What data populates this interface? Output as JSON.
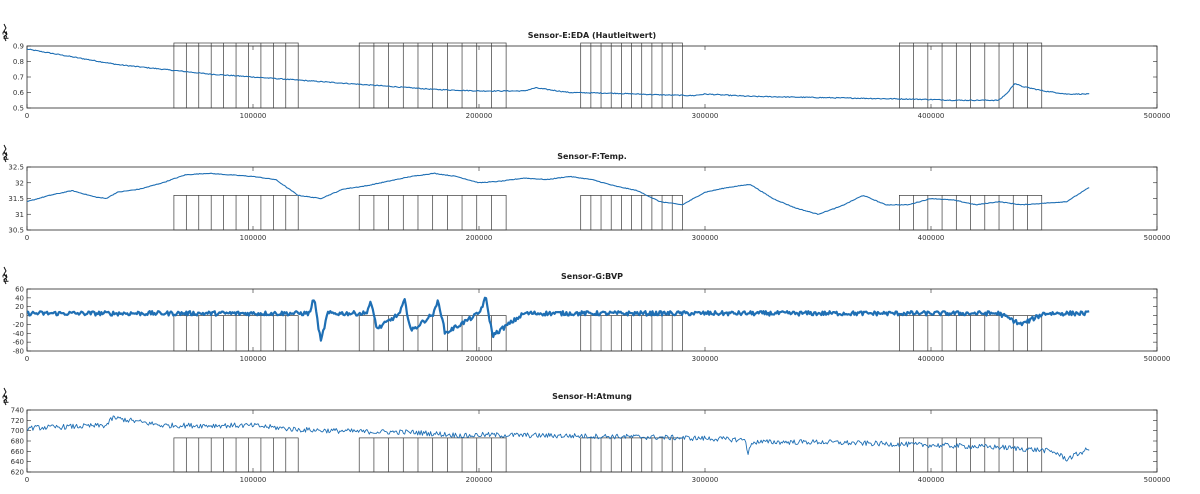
{
  "chart_data": [
    {
      "type": "line",
      "title": "Sensor-E:EDA (Hautleitwert)",
      "ylabel": "p2",
      "xlim": [
        0,
        500000
      ],
      "ylim": [
        0.5,
        0.9
      ],
      "xticks": [
        0,
        100000,
        200000,
        300000,
        400000,
        500000
      ],
      "xtick_labels": [
        "0",
        "100000",
        "200000",
        "300000",
        "400000",
        "500000"
      ],
      "yticks": [
        0.5,
        0.6,
        0.7,
        0.8,
        0.9
      ],
      "ytick_labels": [
        "0.5",
        "0.6",
        "0.7",
        "0.8",
        "0.9"
      ],
      "noise": 0.003,
      "series": [
        {
          "name": "EDA",
          "x": [
            0,
            20000,
            40000,
            60000,
            80000,
            100000,
            120000,
            140000,
            160000,
            180000,
            200000,
            220000,
            225000,
            240000,
            260000,
            280000,
            295000,
            300000,
            320000,
            340000,
            360000,
            380000,
            400000,
            410000,
            420000,
            430000,
            434000,
            437000,
            440000,
            450000,
            460000,
            470000
          ],
          "values": [
            0.88,
            0.83,
            0.78,
            0.75,
            0.72,
            0.7,
            0.68,
            0.66,
            0.64,
            0.62,
            0.61,
            0.61,
            0.63,
            0.6,
            0.595,
            0.585,
            0.58,
            0.59,
            0.575,
            0.57,
            0.565,
            0.56,
            0.555,
            0.55,
            0.55,
            0.55,
            0.6,
            0.66,
            0.64,
            0.61,
            0.59,
            0.59
          ]
        }
      ],
      "blocks": [
        {
          "x_start": 65000,
          "x_end": 120000,
          "y_top": 0.92
        },
        {
          "x_start": 147000,
          "x_end": 212000,
          "y_top": 0.92
        },
        {
          "x_start": 245000,
          "x_end": 290000,
          "y_top": 0.92
        },
        {
          "x_start": 386000,
          "x_end": 449000,
          "y_top": 0.92
        }
      ]
    },
    {
      "type": "line",
      "title": "Sensor-F:Temp.",
      "ylabel": "p2",
      "xlim": [
        0,
        500000
      ],
      "ylim": [
        30.5,
        32.5
      ],
      "xticks": [
        0,
        100000,
        200000,
        300000,
        400000,
        500000
      ],
      "xtick_labels": [
        "0",
        "100000",
        "200000",
        "300000",
        "400000",
        "500000"
      ],
      "yticks": [
        30.5,
        31,
        31.5,
        32,
        32.5
      ],
      "ytick_labels": [
        "30.5",
        "31",
        "31.5",
        "32",
        "32.5"
      ],
      "noise": 0.01,
      "series": [
        {
          "name": "Temp",
          "x": [
            0,
            10000,
            20000,
            30000,
            35000,
            40000,
            50000,
            60000,
            70000,
            80000,
            90000,
            100000,
            110000,
            120000,
            130000,
            140000,
            150000,
            160000,
            170000,
            180000,
            190000,
            200000,
            210000,
            220000,
            230000,
            240000,
            250000,
            260000,
            270000,
            280000,
            290000,
            300000,
            310000,
            320000,
            330000,
            340000,
            350000,
            360000,
            370000,
            380000,
            390000,
            400000,
            410000,
            420000,
            430000,
            440000,
            450000,
            460000,
            470000
          ],
          "values": [
            31.4,
            31.6,
            31.75,
            31.55,
            31.5,
            31.7,
            31.8,
            32.0,
            32.25,
            32.3,
            32.25,
            32.2,
            32.1,
            31.6,
            31.5,
            31.8,
            31.9,
            32.05,
            32.2,
            32.3,
            32.2,
            32.0,
            32.05,
            32.15,
            32.1,
            32.2,
            32.1,
            31.9,
            31.75,
            31.4,
            31.3,
            31.7,
            31.85,
            31.95,
            31.5,
            31.2,
            31.0,
            31.25,
            31.6,
            31.3,
            31.3,
            31.5,
            31.45,
            31.3,
            31.4,
            31.3,
            31.35,
            31.4,
            31.85
          ]
        }
      ],
      "blocks": [
        {
          "x_start": 65000,
          "x_end": 120000,
          "y_top": 31.6
        },
        {
          "x_start": 147000,
          "x_end": 212000,
          "y_top": 31.6
        },
        {
          "x_start": 245000,
          "x_end": 290000,
          "y_top": 31.6
        },
        {
          "x_start": 386000,
          "x_end": 449000,
          "y_top": 31.6
        }
      ]
    },
    {
      "type": "line",
      "title": "Sensor-G:BVP",
      "ylabel": "p2",
      "xlim": [
        0,
        500000
      ],
      "ylim": [
        -80,
        60
      ],
      "xticks": [
        0,
        100000,
        200000,
        300000,
        400000,
        500000
      ],
      "xtick_labels": [
        "0",
        "100000",
        "200000",
        "300000",
        "400000",
        "500000"
      ],
      "yticks": [
        -80,
        -60,
        -40,
        -20,
        0,
        20,
        40,
        60
      ],
      "ytick_labels": [
        "-80",
        "-60",
        "-40",
        "-20",
        "0",
        "20",
        "40",
        "60"
      ],
      "noise": 5,
      "series": [
        {
          "name": "BVP",
          "x": [
            0,
            100000,
            125000,
            127000,
            130000,
            133000,
            150000,
            152000,
            155000,
            165000,
            167000,
            170000,
            180000,
            182000,
            185000,
            200000,
            203000,
            206000,
            220000,
            300000,
            400000,
            430000,
            440000,
            450000,
            470000
          ],
          "values": [
            5,
            5,
            5,
            40,
            -60,
            5,
            5,
            30,
            -30,
            5,
            35,
            -35,
            5,
            35,
            -40,
            5,
            40,
            -45,
            5,
            5,
            5,
            5,
            -20,
            5,
            5
          ]
        }
      ],
      "blocks": [
        {
          "x_start": 65000,
          "x_end": 120000,
          "y_top": 0
        },
        {
          "x_start": 147000,
          "x_end": 212000,
          "y_top": 0
        },
        {
          "x_start": 245000,
          "x_end": 290000,
          "y_top": 0
        },
        {
          "x_start": 386000,
          "x_end": 449000,
          "y_top": 0
        }
      ]
    },
    {
      "type": "line",
      "title": "Sensor-H:Atmung",
      "ylabel": "p2",
      "xlim": [
        0,
        500000
      ],
      "ylim": [
        620,
        740
      ],
      "xticks": [
        0,
        100000,
        200000,
        300000,
        400000,
        500000
      ],
      "xtick_labels": [
        "0",
        "100000",
        "200000",
        "300000",
        "400000",
        "500000"
      ],
      "yticks": [
        620,
        640,
        660,
        680,
        700,
        720,
        740
      ],
      "ytick_labels": [
        "620",
        "640",
        "660",
        "680",
        "700",
        "720",
        "740"
      ],
      "noise": 5,
      "series": [
        {
          "name": "Atmung",
          "x": [
            0,
            35000,
            38000,
            60000,
            100000,
            120000,
            150000,
            170000,
            195000,
            200000,
            240000,
            270000,
            300000,
            318000,
            319000,
            321000,
            350000,
            400000,
            430000,
            450000,
            455000,
            460000,
            470000
          ],
          "values": [
            705,
            710,
            725,
            710,
            710,
            702,
            698,
            697,
            690,
            692,
            690,
            688,
            685,
            682,
            655,
            678,
            678,
            672,
            668,
            662,
            658,
            645,
            665
          ]
        }
      ],
      "blocks": [
        {
          "x_start": 65000,
          "x_end": 120000,
          "y_top": 686
        },
        {
          "x_start": 147000,
          "x_end": 212000,
          "y_top": 686
        },
        {
          "x_start": 245000,
          "x_end": 290000,
          "y_top": 686
        },
        {
          "x_start": 386000,
          "x_end": 449000,
          "y_top": 686
        }
      ]
    }
  ],
  "style": {
    "line_color": "#1f6fb4",
    "box_color": "#262626",
    "block_color": "#3a3a3a"
  }
}
